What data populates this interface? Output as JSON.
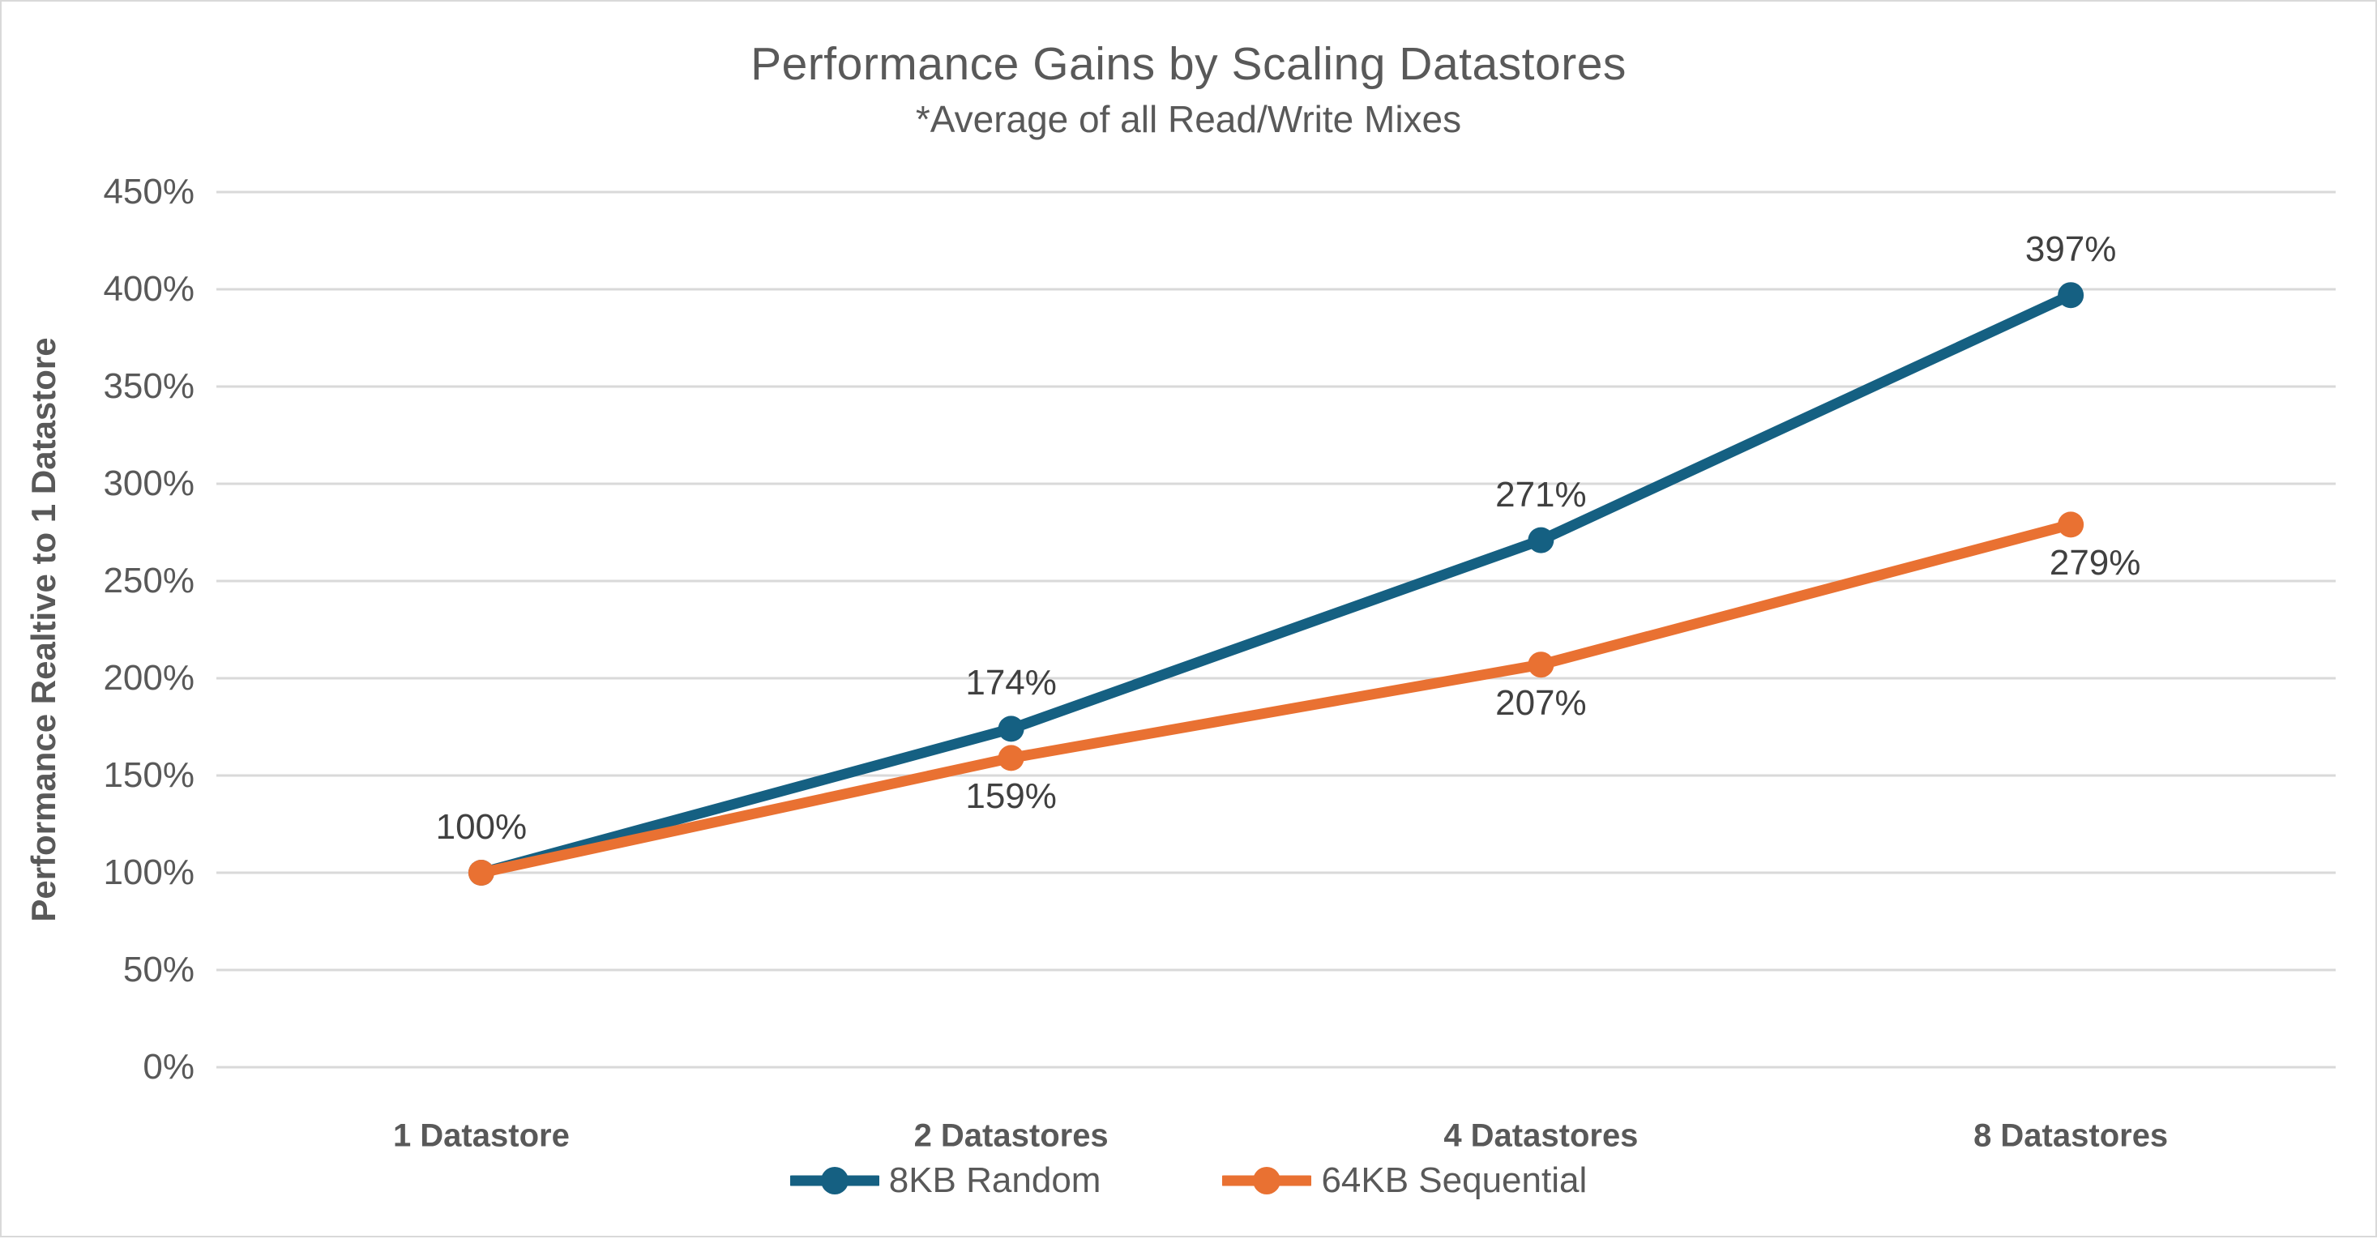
{
  "chart_data": {
    "type": "line",
    "title": "Performance Gains by Scaling Datastores",
    "subtitle": "*Average of all Read/Write Mixes",
    "ylabel": "Performance Realtive to 1 Datastore",
    "xlabel": "",
    "categories": [
      "1 Datastore",
      "2 Datastores",
      "4 Datastores",
      "8 Datastores"
    ],
    "y_ticks": [
      "0%",
      "50%",
      "100%",
      "150%",
      "200%",
      "250%",
      "300%",
      "350%",
      "400%",
      "450%"
    ],
    "ylim": [
      0,
      450
    ],
    "grid": true,
    "legend_position": "bottom",
    "series": [
      {
        "name": "8KB Random",
        "color": "#156082",
        "values": [
          100,
          174,
          271,
          397
        ],
        "labels": [
          "100%",
          "174%",
          "271%",
          "397%"
        ],
        "label_position": "above",
        "label_dx": [
          0,
          0,
          0,
          0
        ]
      },
      {
        "name": "64KB Sequential",
        "color": "#E97132",
        "values": [
          100,
          159,
          207,
          279
        ],
        "labels": [
          "",
          "159%",
          "207%",
          "279%"
        ],
        "label_position": "below",
        "label_dx": [
          0,
          0,
          0,
          30
        ]
      }
    ]
  },
  "colors": {
    "gridline": "#D9D9D9",
    "title_text": "#595959",
    "tick_text": "#595959",
    "data_label_text": "#404040",
    "canvas_border": "#D9D9D9"
  }
}
